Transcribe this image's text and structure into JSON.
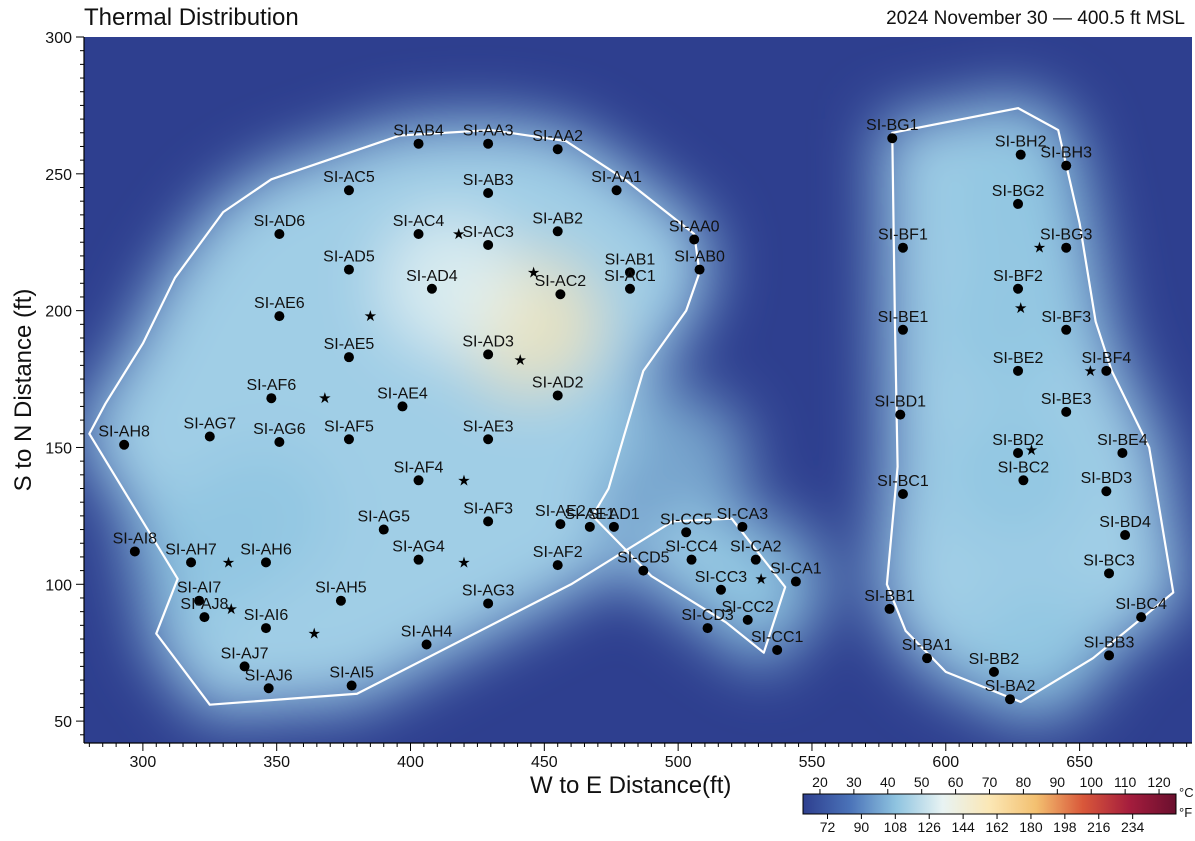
{
  "header": {
    "title": "Thermal Distribution",
    "date_height": "2024 November 30  —  400.5 ft MSL"
  },
  "chart_data": {
    "type": "heatmap",
    "title": "Thermal Distribution",
    "subtitle": "2024 November 30  —  400.5 ft MSL",
    "xlabel": "W to E Distance(ft)",
    "ylabel": "S to N Distance (ft)",
    "xlim": [
      278,
      692
    ],
    "ylim": [
      42,
      300
    ],
    "x_ticks": [
      300,
      350,
      400,
      450,
      500,
      550,
      600,
      650
    ],
    "y_ticks": [
      50,
      100,
      150,
      200,
      250,
      300
    ],
    "colorbar": {
      "celsius_ticks": [
        20,
        30,
        40,
        50,
        60,
        70,
        80,
        90,
        100,
        110,
        120
      ],
      "fahrenheit_ticks": [
        72,
        90,
        108,
        126,
        144,
        162,
        180,
        198,
        216,
        234
      ],
      "unit_c": "°C",
      "unit_f": "°F",
      "range_c": [
        15,
        125
      ],
      "colors": [
        "#2e3f8f",
        "#4a72b8",
        "#8fc4e0",
        "#e8f3f3",
        "#fbe7b5",
        "#f3c070",
        "#d9583a",
        "#a51d3d",
        "#6a0f2e"
      ]
    },
    "hotspots": [
      {
        "x": 445,
        "y": 195,
        "c": 64
      },
      {
        "x": 415,
        "y": 210,
        "c": 50
      },
      {
        "x": 320,
        "y": 110,
        "c": 45
      },
      {
        "x": 345,
        "y": 125,
        "c": 42
      },
      {
        "x": 500,
        "y": 145,
        "c": 42
      },
      {
        "x": 624,
        "y": 195,
        "c": 46
      },
      {
        "x": 634,
        "y": 75,
        "c": 44
      },
      {
        "x": 625,
        "y": 140,
        "c": 40
      },
      {
        "x": 625,
        "y": 240,
        "c": 40
      },
      {
        "x": 530,
        "y": 100,
        "c": 38
      }
    ],
    "boundaries": [
      [
        [
          280,
          155
        ],
        [
          313,
          102
        ],
        [
          305,
          82
        ],
        [
          325,
          56
        ],
        [
          380,
          60
        ],
        [
          460,
          100
        ],
        [
          498,
          123
        ],
        [
          520,
          124
        ],
        [
          540,
          99
        ],
        [
          532,
          75
        ],
        [
          518,
          86
        ],
        [
          490,
          103
        ],
        [
          468,
          125
        ],
        [
          474,
          135
        ],
        [
          480,
          155
        ],
        [
          487,
          178
        ],
        [
          503,
          200
        ],
        [
          508,
          214
        ],
        [
          506,
          228
        ],
        [
          480,
          248
        ],
        [
          458,
          262
        ],
        [
          430,
          266
        ],
        [
          396,
          264
        ],
        [
          348,
          248
        ],
        [
          330,
          236
        ],
        [
          312,
          212
        ],
        [
          300,
          188
        ],
        [
          286,
          166
        ]
      ],
      [
        [
          580,
          265
        ],
        [
          627,
          274
        ],
        [
          642,
          266
        ],
        [
          650,
          232
        ],
        [
          656,
          196
        ],
        [
          662,
          178
        ],
        [
          676,
          150
        ],
        [
          685,
          97
        ],
        [
          655,
          73
        ],
        [
          628,
          57
        ],
        [
          600,
          68
        ],
        [
          585,
          83
        ],
        [
          578,
          100
        ],
        [
          582,
          143
        ],
        [
          581,
          196
        ]
      ]
    ],
    "sensors": [
      {
        "label": "SI-AB4",
        "x": 403,
        "y": 261
      },
      {
        "label": "SI-AA3",
        "x": 429,
        "y": 261
      },
      {
        "label": "SI-AA2",
        "x": 455,
        "y": 259
      },
      {
        "label": "SI-AC5",
        "x": 377,
        "y": 244
      },
      {
        "label": "SI-AB3",
        "x": 429,
        "y": 243
      },
      {
        "label": "SI-AA1",
        "x": 477,
        "y": 244
      },
      {
        "label": "SI-AD6",
        "x": 351,
        "y": 228
      },
      {
        "label": "SI-AC4",
        "x": 403,
        "y": 228
      },
      {
        "label": "SI-AC3",
        "x": 429,
        "y": 224
      },
      {
        "label": "SI-AB2",
        "x": 455,
        "y": 229
      },
      {
        "label": "SI-AA0",
        "x": 506,
        "y": 226
      },
      {
        "label": "SI-AD5",
        "x": 377,
        "y": 215
      },
      {
        "label": "SI-AD4",
        "x": 408,
        "y": 208
      },
      {
        "label": "SI-AC2",
        "x": 456,
        "y": 206
      },
      {
        "label": "SI-AB1",
        "x": 482,
        "y": 214
      },
      {
        "label": "SI-AC1",
        "x": 482,
        "y": 208
      },
      {
        "label": "SI-AB0",
        "x": 508,
        "y": 215
      },
      {
        "label": "SI-AE6",
        "x": 351,
        "y": 198
      },
      {
        "label": "SI-AE5",
        "x": 377,
        "y": 183
      },
      {
        "label": "SI-AD3",
        "x": 429,
        "y": 184
      },
      {
        "label": "SI-AF6",
        "x": 348,
        "y": 168
      },
      {
        "label": "SI-AE4",
        "x": 397,
        "y": 165
      },
      {
        "label": "SI-AD2",
        "x": 455,
        "y": 169
      },
      {
        "label": "SI-AH8",
        "x": 293,
        "y": 151
      },
      {
        "label": "SI-AG7",
        "x": 325,
        "y": 154
      },
      {
        "label": "SI-AG6",
        "x": 351,
        "y": 152
      },
      {
        "label": "SI-AF5",
        "x": 377,
        "y": 153
      },
      {
        "label": "SI-AE3",
        "x": 429,
        "y": 153
      },
      {
        "label": "SI-AF4",
        "x": 403,
        "y": 138
      },
      {
        "label": "SI-AF3",
        "x": 429,
        "y": 123
      },
      {
        "label": "SI-AE2",
        "x": 456,
        "y": 122
      },
      {
        "label": "SI-AE1",
        "x": 467,
        "y": 121
      },
      {
        "label": "SI-AD1",
        "x": 476,
        "y": 121
      },
      {
        "label": "SI-AG5",
        "x": 390,
        "y": 120
      },
      {
        "label": "SI-AI8",
        "x": 297,
        "y": 112
      },
      {
        "label": "SI-AH7",
        "x": 318,
        "y": 108
      },
      {
        "label": "SI-AH6",
        "x": 346,
        "y": 108
      },
      {
        "label": "SI-AG4",
        "x": 403,
        "y": 109
      },
      {
        "label": "SI-AF2",
        "x": 455,
        "y": 107
      },
      {
        "label": "SI-AI7",
        "x": 321,
        "y": 94
      },
      {
        "label": "SI-AJ8",
        "x": 323,
        "y": 88
      },
      {
        "label": "SI-AI6",
        "x": 346,
        "y": 84
      },
      {
        "label": "SI-AH5",
        "x": 374,
        "y": 94
      },
      {
        "label": "SI-AG3",
        "x": 429,
        "y": 93
      },
      {
        "label": "SI-AH4",
        "x": 406,
        "y": 78
      },
      {
        "label": "SI-AJ7",
        "x": 338,
        "y": 70
      },
      {
        "label": "SI-AJ6",
        "x": 347,
        "y": 62
      },
      {
        "label": "SI-AI5",
        "x": 378,
        "y": 63
      },
      {
        "label": "SI-CC5",
        "x": 503,
        "y": 119
      },
      {
        "label": "SI-CA3",
        "x": 524,
        "y": 121
      },
      {
        "label": "SI-CC4",
        "x": 505,
        "y": 109
      },
      {
        "label": "SI-CA2",
        "x": 529,
        "y": 109
      },
      {
        "label": "SI-CD5",
        "x": 487,
        "y": 105
      },
      {
        "label": "SI-CA1",
        "x": 544,
        "y": 101
      },
      {
        "label": "SI-CC3",
        "x": 516,
        "y": 98
      },
      {
        "label": "SI-CC2",
        "x": 526,
        "y": 87
      },
      {
        "label": "SI-CD3",
        "x": 511,
        "y": 84
      },
      {
        "label": "SI-CC1",
        "x": 537,
        "y": 76
      },
      {
        "label": "SI-BG1",
        "x": 580,
        "y": 263
      },
      {
        "label": "SI-BH2",
        "x": 628,
        "y": 257
      },
      {
        "label": "SI-BH3",
        "x": 645,
        "y": 253
      },
      {
        "label": "SI-BG2",
        "x": 627,
        "y": 239
      },
      {
        "label": "SI-BF1",
        "x": 584,
        "y": 223
      },
      {
        "label": "SI-BG3",
        "x": 645,
        "y": 223
      },
      {
        "label": "SI-BF2",
        "x": 627,
        "y": 208
      },
      {
        "label": "SI-BE1",
        "x": 584,
        "y": 193
      },
      {
        "label": "SI-BF3",
        "x": 645,
        "y": 193
      },
      {
        "label": "SI-BE2",
        "x": 627,
        "y": 178
      },
      {
        "label": "SI-BF4",
        "x": 660,
        "y": 178
      },
      {
        "label": "SI-BD1",
        "x": 583,
        "y": 162
      },
      {
        "label": "SI-BE3",
        "x": 645,
        "y": 163
      },
      {
        "label": "SI-BD2",
        "x": 627,
        "y": 148
      },
      {
        "label": "SI-BE4",
        "x": 666,
        "y": 148
      },
      {
        "label": "SI-BC1",
        "x": 584,
        "y": 133
      },
      {
        "label": "SI-BC2",
        "x": 629,
        "y": 138
      },
      {
        "label": "SI-BD3",
        "x": 660,
        "y": 134
      },
      {
        "label": "SI-BD4",
        "x": 667,
        "y": 118
      },
      {
        "label": "SI-BC3",
        "x": 661,
        "y": 104
      },
      {
        "label": "SI-BB1",
        "x": 579,
        "y": 91
      },
      {
        "label": "SI-BC4",
        "x": 673,
        "y": 88
      },
      {
        "label": "SI-BA1",
        "x": 593,
        "y": 73
      },
      {
        "label": "SI-BB2",
        "x": 618,
        "y": 68
      },
      {
        "label": "SI-BB3",
        "x": 661,
        "y": 74
      },
      {
        "label": "SI-BA2",
        "x": 624,
        "y": 58
      }
    ],
    "stars": [
      {
        "x": 418,
        "y": 228
      },
      {
        "x": 446,
        "y": 214
      },
      {
        "x": 385,
        "y": 198
      },
      {
        "x": 441,
        "y": 182
      },
      {
        "x": 368,
        "y": 168
      },
      {
        "x": 420,
        "y": 138
      },
      {
        "x": 332,
        "y": 108
      },
      {
        "x": 420,
        "y": 108
      },
      {
        "x": 333,
        "y": 91
      },
      {
        "x": 364,
        "y": 82
      },
      {
        "x": 531,
        "y": 102
      },
      {
        "x": 635,
        "y": 223
      },
      {
        "x": 628,
        "y": 201
      },
      {
        "x": 654,
        "y": 178
      },
      {
        "x": 632,
        "y": 149
      }
    ]
  }
}
